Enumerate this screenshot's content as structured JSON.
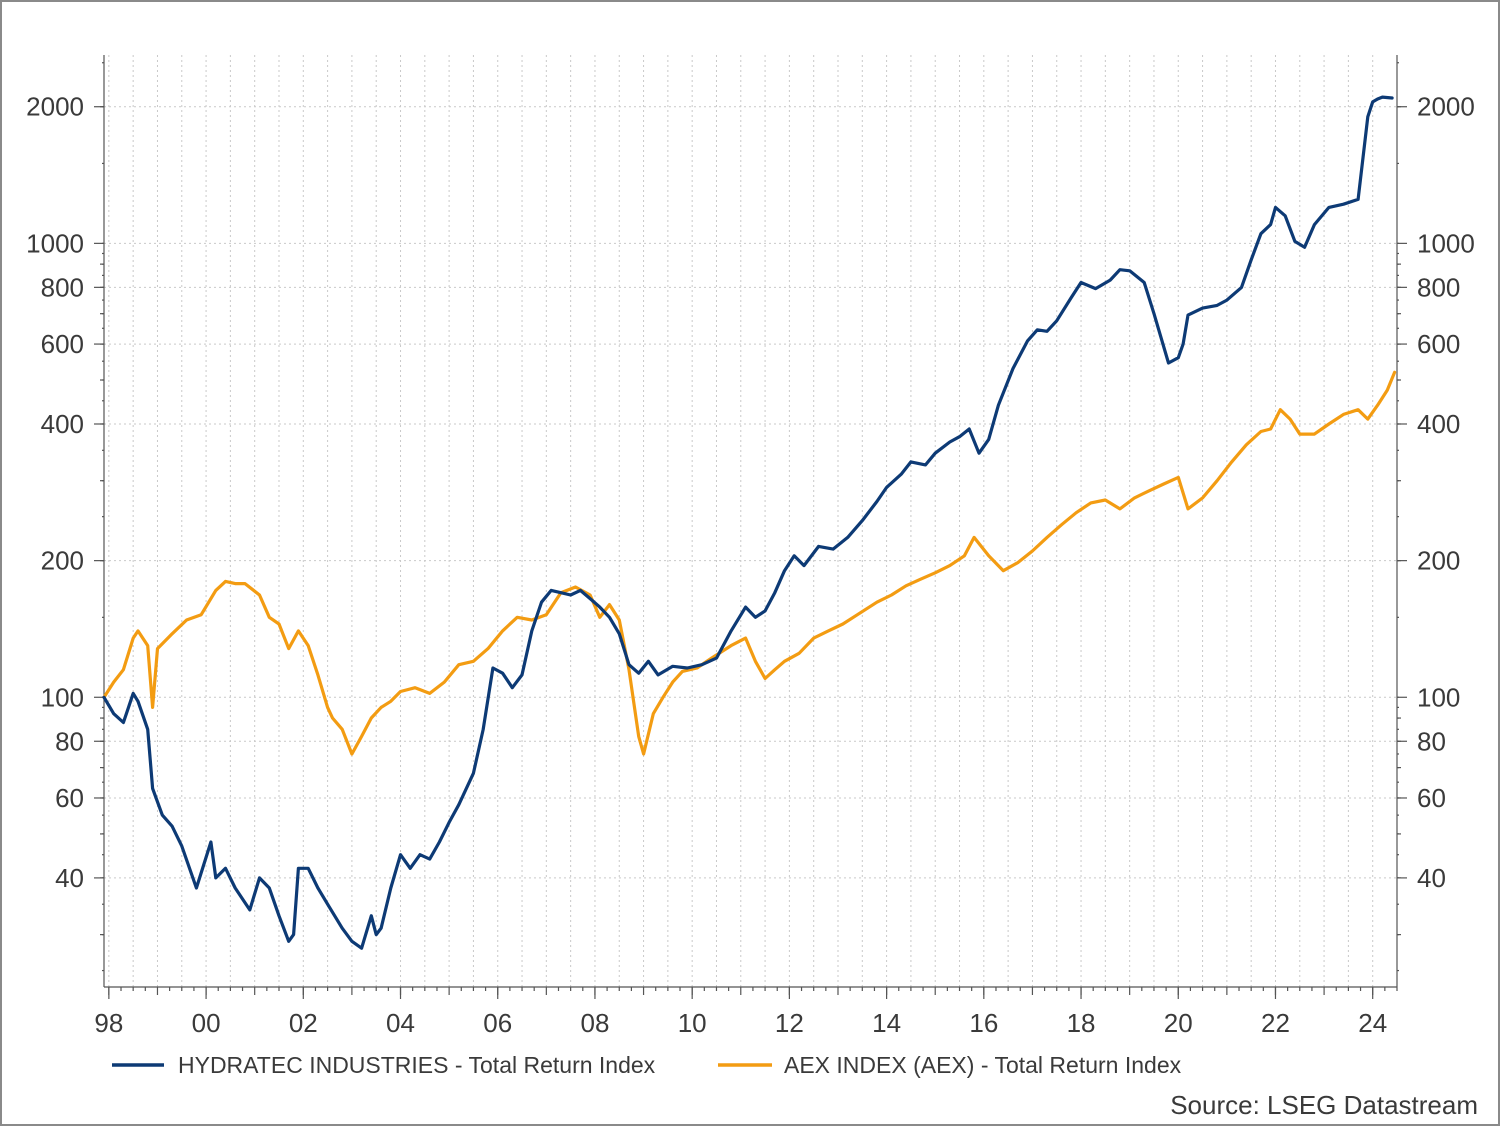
{
  "chart_data": {
    "type": "line",
    "title": "",
    "xlabel": "",
    "ylabel": "",
    "yscale": "log",
    "xlim": [
      1997.9,
      2024.5
    ],
    "ylim": [
      23,
      2600
    ],
    "grid": true,
    "legend_position": "bottom",
    "x_ticks": [
      1998,
      2000,
      2002,
      2004,
      2006,
      2008,
      2010,
      2012,
      2014,
      2016,
      2018,
      2020,
      2022,
      2024
    ],
    "x_tick_labels": [
      "98",
      "00",
      "02",
      "04",
      "06",
      "08",
      "10",
      "12",
      "14",
      "16",
      "18",
      "20",
      "22",
      "24"
    ],
    "y_ticks": [
      40,
      60,
      80,
      100,
      200,
      400,
      600,
      800,
      1000,
      2000
    ],
    "y_tick_labels": [
      "40",
      "60",
      "80",
      "100",
      "200",
      "400",
      "600",
      "800",
      "1000",
      "2000"
    ],
    "y_minor_ticks": [
      30,
      50,
      70,
      90,
      300,
      500,
      700,
      900,
      3000
    ],
    "series": [
      {
        "name": "HYDRATEC INDUSTRIES - Total Return Index",
        "color": "#0d3a75",
        "x": [
          1997.9,
          1998.1,
          1998.3,
          1998.5,
          1998.6,
          1998.8,
          1998.9,
          1999.1,
          1999.3,
          1999.5,
          1999.8,
          2000.1,
          2000.2,
          2000.4,
          2000.6,
          2000.9,
          2001.1,
          2001.3,
          2001.5,
          2001.7,
          2001.8,
          2001.9,
          2002.1,
          2002.3,
          2002.5,
          2002.8,
          2003.0,
          2003.2,
          2003.4,
          2003.5,
          2003.6,
          2003.8,
          2004.0,
          2004.2,
          2004.4,
          2004.6,
          2004.8,
          2005.0,
          2005.2,
          2005.5,
          2005.7,
          2005.9,
          2006.1,
          2006.3,
          2006.5,
          2006.7,
          2006.9,
          2007.1,
          2007.3,
          2007.5,
          2007.7,
          2007.9,
          2008.1,
          2008.3,
          2008.5,
          2008.7,
          2008.9,
          2009.1,
          2009.3,
          2009.6,
          2009.9,
          2010.2,
          2010.5,
          2010.8,
          2011.1,
          2011.3,
          2011.5,
          2011.7,
          2011.9,
          2012.1,
          2012.3,
          2012.6,
          2012.9,
          2013.2,
          2013.5,
          2013.8,
          2014.0,
          2014.3,
          2014.5,
          2014.8,
          2015.0,
          2015.3,
          2015.5,
          2015.7,
          2015.9,
          2016.1,
          2016.3,
          2016.6,
          2016.9,
          2017.1,
          2017.3,
          2017.5,
          2017.8,
          2018.0,
          2018.3,
          2018.6,
          2018.8,
          2019.0,
          2019.3,
          2019.5,
          2019.8,
          2020.0,
          2020.1,
          2020.2,
          2020.5,
          2020.8,
          2021.0,
          2021.3,
          2021.5,
          2021.7,
          2021.9,
          2022.0,
          2022.2,
          2022.4,
          2022.6,
          2022.8,
          2023.1,
          2023.4,
          2023.7,
          2023.9,
          2024.0,
          2024.1,
          2024.2,
          2024.4
        ],
        "values": [
          100,
          92,
          88,
          102,
          98,
          85,
          63,
          55,
          52,
          47,
          38,
          48,
          40,
          42,
          38,
          34,
          40,
          38,
          33,
          29,
          30,
          42,
          42,
          38,
          35,
          31,
          29,
          28,
          33,
          30,
          31,
          38,
          45,
          42,
          45,
          44,
          48,
          53,
          58,
          68,
          85,
          116,
          113,
          105,
          112,
          140,
          162,
          172,
          170,
          168,
          172,
          165,
          158,
          150,
          138,
          118,
          113,
          120,
          112,
          117,
          116,
          118,
          122,
          140,
          158,
          150,
          155,
          170,
          190,
          205,
          195,
          215,
          212,
          225,
          245,
          270,
          290,
          310,
          330,
          325,
          345,
          365,
          375,
          390,
          345,
          370,
          440,
          530,
          610,
          645,
          640,
          675,
          760,
          820,
          795,
          830,
          875,
          870,
          820,
          700,
          545,
          560,
          600,
          695,
          720,
          730,
          750,
          800,
          920,
          1050,
          1100,
          1200,
          1150,
          1010,
          980,
          1100,
          1200,
          1220,
          1250,
          1900,
          2050,
          2080,
          2100,
          2090
        ]
      },
      {
        "name": "AEX INDEX (AEX) - Total Return Index",
        "color": "#f39c12",
        "x": [
          1997.9,
          1998.1,
          1998.3,
          1998.5,
          1998.6,
          1998.8,
          1998.9,
          1999.0,
          1999.3,
          1999.6,
          1999.9,
          2000.2,
          2000.4,
          2000.6,
          2000.8,
          2001.1,
          2001.3,
          2001.5,
          2001.7,
          2001.9,
          2002.1,
          2002.3,
          2002.5,
          2002.6,
          2002.8,
          2003.0,
          2003.2,
          2003.4,
          2003.6,
          2003.8,
          2004.0,
          2004.3,
          2004.6,
          2004.9,
          2005.2,
          2005.5,
          2005.8,
          2006.1,
          2006.4,
          2006.7,
          2007.0,
          2007.3,
          2007.6,
          2007.9,
          2008.1,
          2008.3,
          2008.5,
          2008.7,
          2008.9,
          2009.0,
          2009.2,
          2009.4,
          2009.6,
          2009.8,
          2010.1,
          2010.4,
          2010.8,
          2011.1,
          2011.3,
          2011.5,
          2011.7,
          2011.9,
          2012.2,
          2012.5,
          2012.8,
          2013.1,
          2013.4,
          2013.8,
          2014.1,
          2014.4,
          2014.7,
          2015.0,
          2015.3,
          2015.6,
          2015.8,
          2016.1,
          2016.4,
          2016.7,
          2017.0,
          2017.3,
          2017.6,
          2017.9,
          2018.2,
          2018.5,
          2018.8,
          2019.1,
          2019.4,
          2019.7,
          2020.0,
          2020.2,
          2020.5,
          2020.8,
          2021.1,
          2021.4,
          2021.7,
          2021.9,
          2022.1,
          2022.3,
          2022.5,
          2022.8,
          2023.1,
          2023.4,
          2023.7,
          2023.9,
          2024.1,
          2024.3,
          2024.45
        ],
        "values": [
          100,
          108,
          115,
          135,
          140,
          130,
          95,
          128,
          138,
          148,
          152,
          172,
          180,
          178,
          178,
          168,
          150,
          145,
          128,
          140,
          130,
          112,
          95,
          90,
          85,
          75,
          82,
          90,
          95,
          98,
          103,
          105,
          102,
          108,
          118,
          120,
          128,
          140,
          150,
          148,
          152,
          170,
          175,
          168,
          150,
          160,
          148,
          115,
          82,
          75,
          92,
          100,
          108,
          114,
          116,
          122,
          130,
          135,
          120,
          110,
          115,
          120,
          125,
          135,
          140,
          145,
          152,
          162,
          168,
          176,
          182,
          188,
          195,
          205,
          225,
          205,
          190,
          198,
          210,
          225,
          240,
          255,
          268,
          272,
          260,
          275,
          285,
          295,
          305,
          260,
          275,
          300,
          330,
          360,
          385,
          390,
          430,
          410,
          380,
          380,
          400,
          420,
          430,
          410,
          440,
          475,
          520
        ]
      }
    ]
  },
  "source": "Source: LSEG Datastream"
}
